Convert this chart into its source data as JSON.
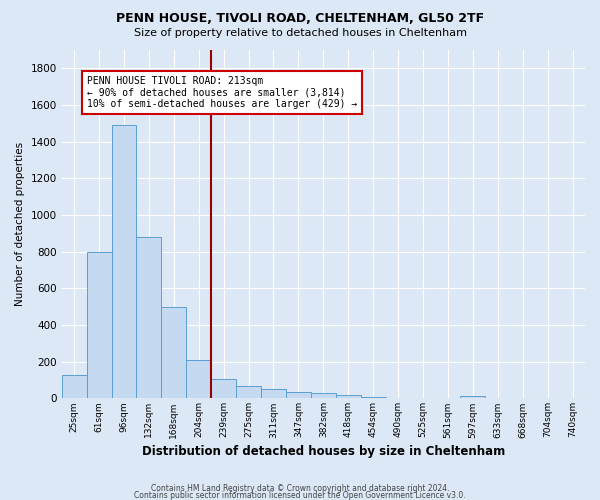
{
  "title1": "PENN HOUSE, TIVOLI ROAD, CHELTENHAM, GL50 2TF",
  "title2": "Size of property relative to detached houses in Cheltenham",
  "xlabel": "Distribution of detached houses by size in Cheltenham",
  "ylabel": "Number of detached properties",
  "bin_labels": [
    "25sqm",
    "61sqm",
    "96sqm",
    "132sqm",
    "168sqm",
    "204sqm",
    "239sqm",
    "275sqm",
    "311sqm",
    "347sqm",
    "382sqm",
    "418sqm",
    "454sqm",
    "490sqm",
    "525sqm",
    "561sqm",
    "597sqm",
    "633sqm",
    "668sqm",
    "704sqm",
    "740sqm"
  ],
  "bar_values": [
    130,
    800,
    1490,
    880,
    500,
    210,
    105,
    65,
    50,
    35,
    28,
    18,
    5,
    2,
    2,
    2,
    12,
    0,
    0,
    0,
    0
  ],
  "bar_color": "#c5d9f0",
  "bar_edge_color": "#5a9fd4",
  "vline_color": "#990000",
  "annotation_text": "PENN HOUSE TIVOLI ROAD: 213sqm\n← 90% of detached houses are smaller (3,814)\n10% of semi-detached houses are larger (429) →",
  "annotation_box_color": "#ffffff",
  "annotation_box_edge": "#cc0000",
  "ylim": [
    0,
    1900
  ],
  "yticks": [
    0,
    200,
    400,
    600,
    800,
    1000,
    1200,
    1400,
    1600,
    1800
  ],
  "background_color": "#dce8f5",
  "plot_bg_color": "#dce8f5",
  "grid_color": "#ffffff",
  "footnote1": "Contains HM Land Registry data © Crown copyright and database right 2024.",
  "footnote2": "Contains public sector information licensed under the Open Government Licence v3.0."
}
